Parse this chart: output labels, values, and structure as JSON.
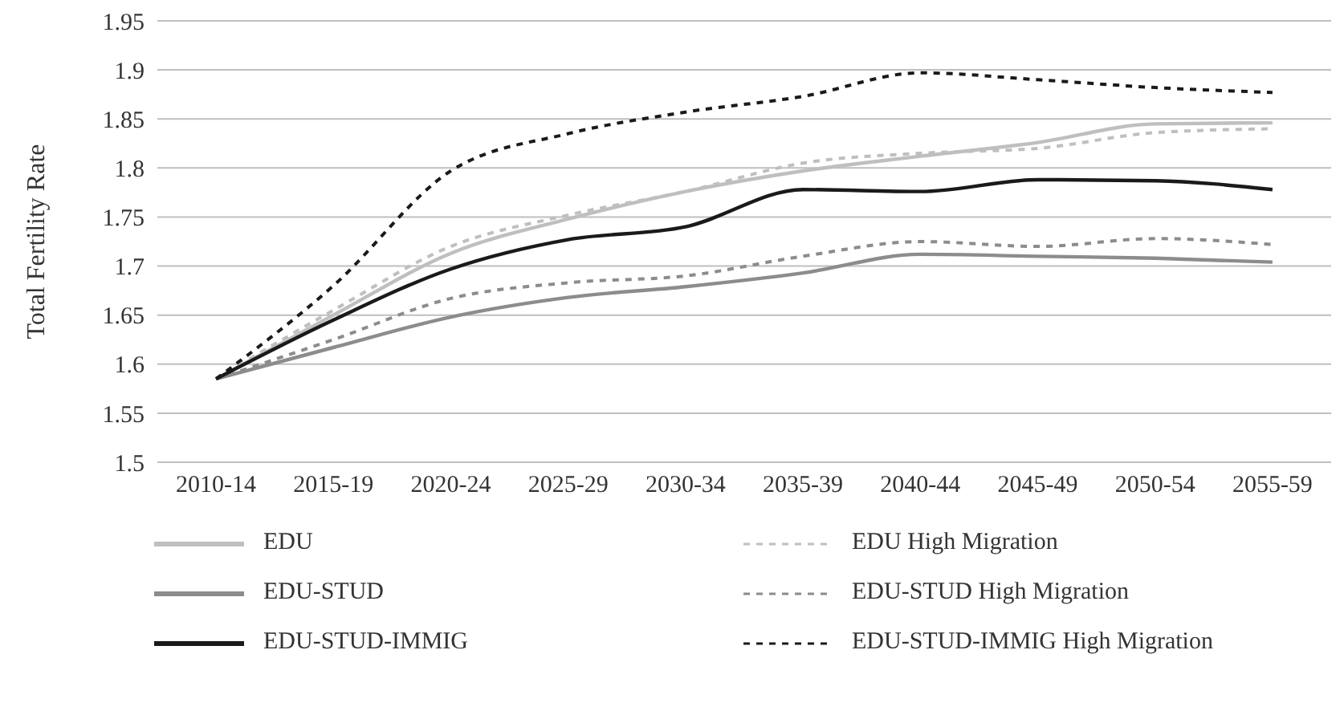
{
  "chart_data": {
    "type": "line",
    "ylabel": "Total Fertility Rate",
    "categories": [
      "2010-14",
      "2015-19",
      "2020-24",
      "2025-29",
      "2030-34",
      "2035-39",
      "2040-44",
      "2045-49",
      "2050-54",
      "2055-59"
    ],
    "series": [
      {
        "name": "EDU",
        "color": "#bfbfbf",
        "line_style": "solid",
        "values": [
          1.585,
          1.65,
          1.713,
          1.748,
          1.776,
          1.797,
          1.812,
          1.826,
          1.845,
          1.846
        ]
      },
      {
        "name": "EDU High Migration",
        "color": "#bfbfbf",
        "line_style": "dashed",
        "values": [
          1.585,
          1.655,
          1.72,
          1.752,
          1.776,
          1.805,
          1.815,
          1.82,
          1.836,
          1.84
        ]
      },
      {
        "name": "EDU-STUD",
        "color": "#8c8c8c",
        "line_style": "solid",
        "values": [
          1.585,
          1.617,
          1.648,
          1.668,
          1.679,
          1.693,
          1.712,
          1.71,
          1.708,
          1.704
        ]
      },
      {
        "name": "EDU-STUD High Migration",
        "color": "#8c8c8c",
        "line_style": "dashed",
        "values": [
          1.585,
          1.625,
          1.667,
          1.683,
          1.69,
          1.71,
          1.725,
          1.72,
          1.728,
          1.722
        ]
      },
      {
        "name": "EDU-STUD-IMMIG",
        "color": "#1a1a1a",
        "line_style": "solid",
        "values": [
          1.585,
          1.645,
          1.697,
          1.727,
          1.74,
          1.778,
          1.776,
          1.788,
          1.787,
          1.778
        ]
      },
      {
        "name": "EDU-STUD-IMMIG High Migration",
        "color": "#1a1a1a",
        "line_style": "dashed",
        "values": [
          1.585,
          1.68,
          1.797,
          1.835,
          1.857,
          1.873,
          1.897,
          1.89,
          1.882,
          1.877
        ]
      }
    ],
    "ylim": [
      1.5,
      1.95
    ],
    "yticks": [
      1.5,
      1.55,
      1.6,
      1.65,
      1.7,
      1.75,
      1.8,
      1.85,
      1.9,
      1.95
    ],
    "grid": "y",
    "legend": "bottom",
    "marker": "none"
  }
}
